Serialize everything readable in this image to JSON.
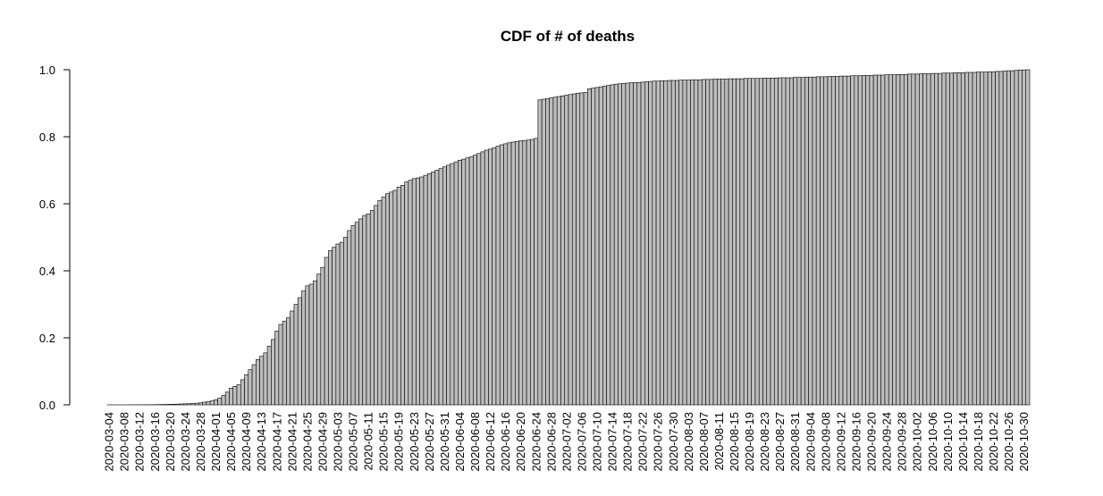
{
  "chart_data": {
    "type": "bar",
    "title": "CDF of # of deaths",
    "categories": [
      "2020-03-04",
      null,
      null,
      null,
      "2020-03-08",
      null,
      null,
      null,
      "2020-03-12",
      null,
      null,
      null,
      "2020-03-16",
      null,
      null,
      null,
      "2020-03-20",
      null,
      null,
      null,
      "2020-03-24",
      null,
      null,
      null,
      "2020-03-28",
      null,
      null,
      null,
      "2020-04-01",
      null,
      null,
      null,
      "2020-04-05",
      null,
      null,
      null,
      "2020-04-09",
      null,
      null,
      null,
      "2020-04-13",
      null,
      null,
      null,
      "2020-04-17",
      null,
      null,
      null,
      "2020-04-21",
      null,
      null,
      null,
      "2020-04-25",
      null,
      null,
      null,
      "2020-04-29",
      null,
      null,
      null,
      "2020-05-03",
      null,
      null,
      null,
      "2020-05-07",
      null,
      null,
      null,
      "2020-05-11",
      null,
      null,
      null,
      "2020-05-15",
      null,
      null,
      null,
      "2020-05-19",
      null,
      null,
      null,
      "2020-05-23",
      null,
      null,
      null,
      "2020-05-27",
      null,
      null,
      null,
      "2020-05-31",
      null,
      null,
      null,
      "2020-06-04",
      null,
      null,
      null,
      "2020-06-08",
      null,
      null,
      null,
      "2020-06-12",
      null,
      null,
      null,
      "2020-06-16",
      null,
      null,
      null,
      "2020-06-20",
      null,
      null,
      null,
      "2020-06-24",
      null,
      null,
      null,
      "2020-06-28",
      null,
      null,
      null,
      "2020-07-02",
      null,
      null,
      null,
      "2020-07-06",
      null,
      null,
      null,
      "2020-07-10",
      null,
      null,
      null,
      "2020-07-14",
      null,
      null,
      null,
      "2020-07-18",
      null,
      null,
      null,
      "2020-07-22",
      null,
      null,
      null,
      "2020-07-26",
      null,
      null,
      null,
      "2020-07-30",
      null,
      null,
      null,
      "2020-08-03",
      null,
      null,
      null,
      "2020-08-07",
      null,
      null,
      null,
      "2020-08-11",
      null,
      null,
      null,
      "2020-08-15",
      null,
      null,
      null,
      "2020-08-19",
      null,
      null,
      null,
      "2020-08-23",
      null,
      null,
      null,
      "2020-08-27",
      null,
      null,
      null,
      "2020-08-31",
      null,
      null,
      null,
      "2020-09-04",
      null,
      null,
      null,
      "2020-09-08",
      null,
      null,
      null,
      "2020-09-12",
      null,
      null,
      null,
      "2020-09-16",
      null,
      null,
      null,
      "2020-09-20",
      null,
      null,
      null,
      "2020-09-24",
      null,
      null,
      null,
      "2020-09-28",
      null,
      null,
      null,
      "2020-10-02",
      null,
      null,
      null,
      "2020-10-06",
      null,
      null,
      null,
      "2020-10-10",
      null,
      null,
      null,
      "2020-10-14",
      null,
      null,
      null,
      "2020-10-18",
      null,
      null,
      null,
      "2020-10-22",
      null,
      null,
      null,
      "2020-10-26",
      null,
      null,
      null,
      "2020-10-30",
      null
    ],
    "values": [
      0.0001,
      0.0001,
      0.0001,
      0.0001,
      0.0001,
      0.0002,
      0.0002,
      0.0002,
      0.0003,
      0.0003,
      0.0004,
      0.0005,
      0.0006,
      0.0008,
      0.001,
      0.0012,
      0.0015,
      0.0018,
      0.0022,
      0.0027,
      0.003,
      0.0035,
      0.004,
      0.005,
      0.006,
      0.008,
      0.01,
      0.012,
      0.015,
      0.02,
      0.028,
      0.038,
      0.05,
      0.055,
      0.06,
      0.075,
      0.09,
      0.105,
      0.12,
      0.135,
      0.145,
      0.155,
      0.175,
      0.195,
      0.22,
      0.24,
      0.25,
      0.26,
      0.28,
      0.3,
      0.32,
      0.34,
      0.355,
      0.36,
      0.37,
      0.39,
      0.41,
      0.44,
      0.46,
      0.47,
      0.48,
      0.485,
      0.5,
      0.52,
      0.535,
      0.545,
      0.555,
      0.565,
      0.57,
      0.58,
      0.595,
      0.61,
      0.62,
      0.63,
      0.635,
      0.64,
      0.65,
      0.655,
      0.665,
      0.67,
      0.675,
      0.677,
      0.68,
      0.685,
      0.69,
      0.695,
      0.7,
      0.705,
      0.71,
      0.715,
      0.72,
      0.725,
      0.73,
      0.733,
      0.737,
      0.74,
      0.745,
      0.75,
      0.755,
      0.76,
      0.763,
      0.767,
      0.772,
      0.776,
      0.779,
      0.782,
      0.784,
      0.786,
      0.788,
      0.789,
      0.79,
      0.792,
      0.795,
      0.91,
      0.912,
      0.914,
      0.916,
      0.918,
      0.92,
      0.922,
      0.924,
      0.926,
      0.928,
      0.93,
      0.931,
      0.932,
      0.943,
      0.945,
      0.947,
      0.949,
      0.951,
      0.953,
      0.955,
      0.957,
      0.958,
      0.959,
      0.96,
      0.961,
      0.962,
      0.962,
      0.963,
      0.964,
      0.965,
      0.966,
      0.966,
      0.967,
      0.967,
      0.968,
      0.968,
      0.968,
      0.969,
      0.969,
      0.969,
      0.97,
      0.97,
      0.97,
      0.971,
      0.971,
      0.971,
      0.972,
      0.972,
      0.972,
      0.972,
      0.973,
      0.973,
      0.973,
      0.973,
      0.974,
      0.974,
      0.974,
      0.974,
      0.974,
      0.975,
      0.975,
      0.975,
      0.975,
      0.976,
      0.976,
      0.976,
      0.976,
      0.977,
      0.977,
      0.977,
      0.978,
      0.978,
      0.978,
      0.979,
      0.979,
      0.979,
      0.98,
      0.98,
      0.98,
      0.981,
      0.981,
      0.981,
      0.982,
      0.982,
      0.982,
      0.983,
      0.983,
      0.983,
      0.984,
      0.984,
      0.984,
      0.985,
      0.985,
      0.985,
      0.986,
      0.986,
      0.986,
      0.987,
      0.987,
      0.987,
      0.988,
      0.988,
      0.988,
      0.989,
      0.989,
      0.989,
      0.99,
      0.99,
      0.99,
      0.991,
      0.991,
      0.991,
      0.992,
      0.992,
      0.992,
      0.993,
      0.993,
      0.993,
      0.994,
      0.994,
      0.995,
      0.995,
      0.996,
      0.997,
      0.997,
      0.998,
      0.999,
      0.9995,
      1.0
    ],
    "color": "#bebebe",
    "ylim": [
      0,
      1
    ],
    "yticks": [
      {
        "value": 0,
        "label": "0.0"
      },
      {
        "value": 0.2,
        "label": "0.2"
      },
      {
        "value": 0.4,
        "label": "0.4"
      },
      {
        "value": 0.6,
        "label": "0.6"
      },
      {
        "value": 0.8,
        "label": "0.8"
      },
      {
        "value": 1,
        "label": "1.0"
      }
    ],
    "grid": false
  }
}
